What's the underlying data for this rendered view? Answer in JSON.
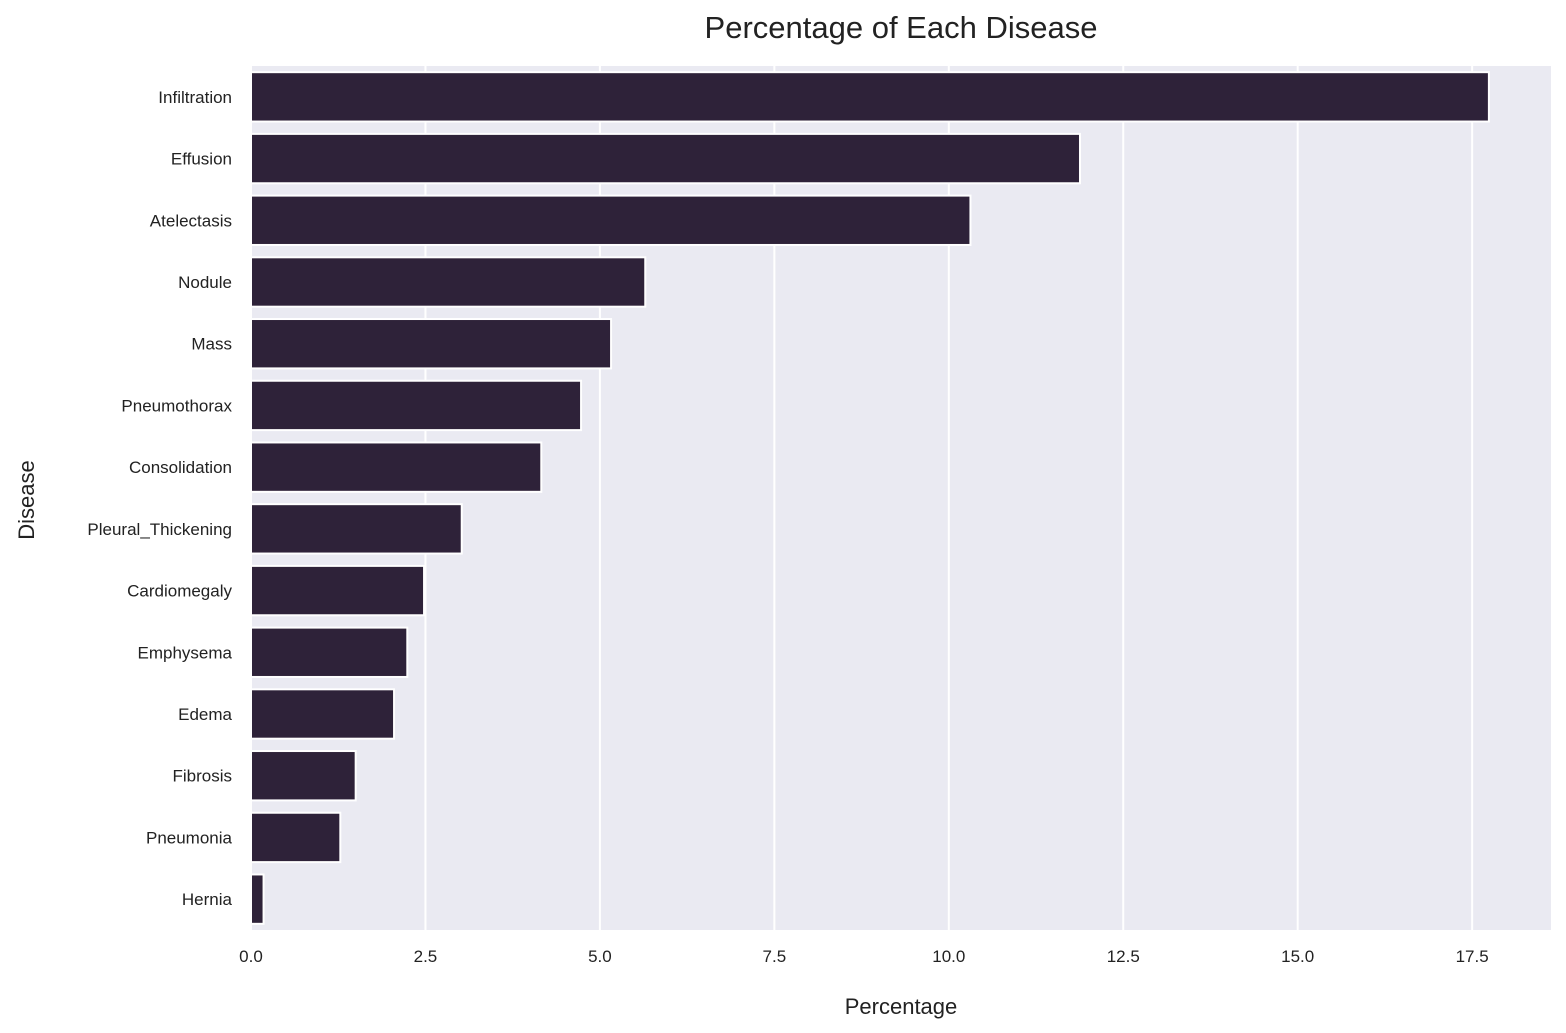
{
  "chart_data": {
    "type": "bar",
    "orientation": "horizontal",
    "title": "Percentage of Each Disease",
    "xlabel": "Percentage",
    "ylabel": "Disease",
    "categories": [
      "Infiltration",
      "Effusion",
      "Atelectasis",
      "Nodule",
      "Mass",
      "Pneumothorax",
      "Consolidation",
      "Pleural_Thickening",
      "Cardiomegaly",
      "Emphysema",
      "Edema",
      "Fibrosis",
      "Pneumonia",
      "Hernia"
    ],
    "values": [
      17.74,
      11.88,
      10.31,
      5.65,
      5.16,
      4.73,
      4.16,
      3.02,
      2.48,
      2.24,
      2.05,
      1.5,
      1.28,
      0.18
    ],
    "xlim": [
      0,
      18.63
    ],
    "xticks": [
      "0.0",
      "2.5",
      "5.0",
      "7.5",
      "10.0",
      "12.5",
      "15.0",
      "17.5"
    ],
    "grid": true,
    "colors": {
      "bar": "#2e2239",
      "plot_background": "#eaeaf2",
      "grid": "#ffffff"
    }
  }
}
